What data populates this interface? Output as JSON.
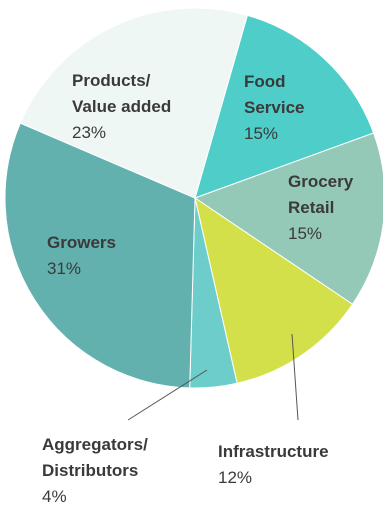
{
  "chart_data": {
    "type": "pie",
    "slices": [
      {
        "label": [
          "Food",
          "Service"
        ],
        "pct_label": "15%",
        "value": 15,
        "color": "#4ecdc9"
      },
      {
        "label": [
          "Grocery",
          "Retail"
        ],
        "pct_label": "15%",
        "value": 15,
        "color": "#94c8b7"
      },
      {
        "label": [
          "Infrastructure"
        ],
        "pct_label": "12%",
        "value": 12,
        "color": "#d4e04a"
      },
      {
        "label": [
          "Aggregators/",
          "Distributors"
        ],
        "pct_label": "4%",
        "value": 4,
        "color": "#6dcdcb"
      },
      {
        "label": [
          "Growers"
        ],
        "pct_label": "31%",
        "value": 31,
        "color": "#62b1ae"
      },
      {
        "label": [
          "Products/",
          "Value added"
        ],
        "pct_label": "23%",
        "value": 23,
        "color": "#eef7f4"
      }
    ],
    "start_angle_deg": 16
  }
}
